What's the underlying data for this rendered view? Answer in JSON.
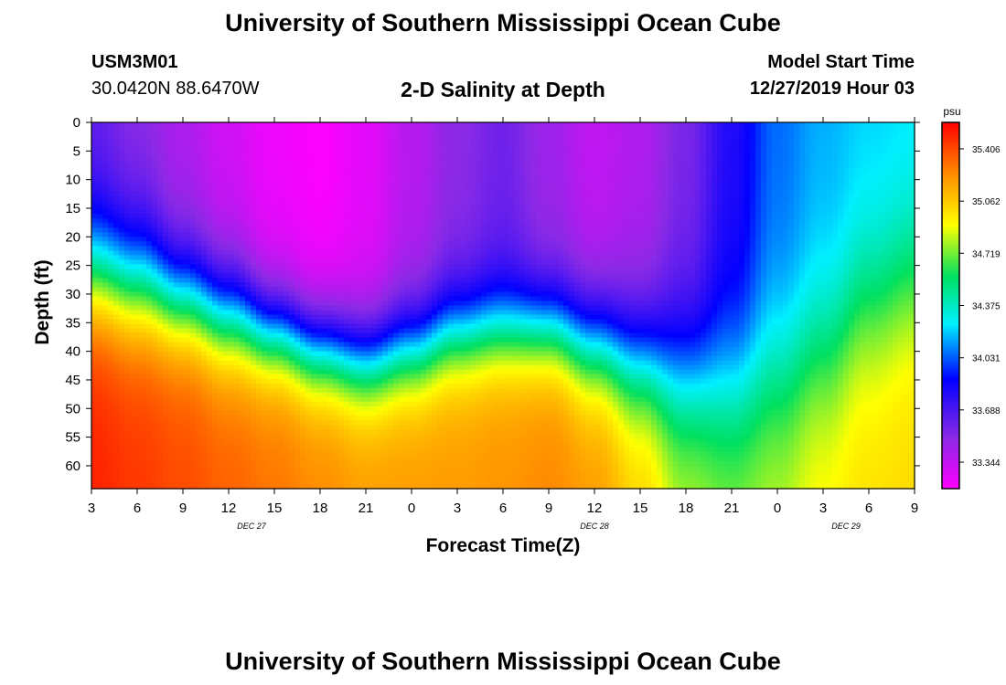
{
  "header": {
    "title": "University of Southern Mississippi Ocean Cube",
    "station_id": "USM3M01",
    "station_coords": "30.0420N 88.6470W",
    "plot_title": "2-D Salinity at Depth",
    "start_label": "Model Start Time",
    "start_value": "12/27/2019 Hour 03"
  },
  "footer": {
    "title": "University of Southern Mississippi Ocean Cube"
  },
  "chart_data": {
    "type": "heatmap",
    "title": "2-D Salinity at Depth",
    "xlabel": "Forecast Time(Z)",
    "ylabel": "Depth (ft)",
    "x_tick_labels": [
      "3",
      "6",
      "9",
      "12",
      "15",
      "18",
      "21",
      "0",
      "3",
      "6",
      "9",
      "12",
      "15",
      "18",
      "21",
      "0",
      "3",
      "6",
      "9"
    ],
    "x_tick_hours": [
      0,
      3,
      6,
      9,
      12,
      15,
      18,
      21,
      24,
      27,
      30,
      33,
      36,
      39,
      42,
      45,
      48,
      51,
      54
    ],
    "x_range_hours": [
      0,
      54
    ],
    "date_labels": [
      {
        "text": "DEC 27",
        "hour": 10.5
      },
      {
        "text": "DEC 28",
        "hour": 33
      },
      {
        "text": "DEC 29",
        "hour": 49.5
      }
    ],
    "y_ticks": [
      0,
      5,
      10,
      15,
      20,
      25,
      30,
      35,
      40,
      45,
      50,
      55,
      60
    ],
    "y_range": [
      0,
      64
    ],
    "colorbar": {
      "unit": "psu",
      "labels": [
        "35.406",
        "35.062",
        "34.719",
        "34.375",
        "34.031",
        "33.688",
        "33.344"
      ],
      "range": [
        33.17,
        35.58
      ]
    },
    "columns": [
      {
        "hour": 0,
        "halocline": 26,
        "surface": 33.6,
        "deep": 35.5,
        "width": 10
      },
      {
        "hour": 3,
        "halocline": 28,
        "surface": 33.5,
        "deep": 35.45,
        "width": 10
      },
      {
        "hour": 6,
        "halocline": 31,
        "surface": 33.4,
        "deep": 35.4,
        "width": 9
      },
      {
        "hour": 9,
        "halocline": 34,
        "surface": 33.3,
        "deep": 35.35,
        "width": 9
      },
      {
        "hour": 12,
        "halocline": 37,
        "surface": 33.22,
        "deep": 35.3,
        "width": 8
      },
      {
        "hour": 15,
        "halocline": 40,
        "surface": 33.18,
        "deep": 35.25,
        "width": 8
      },
      {
        "hour": 18,
        "halocline": 42,
        "surface": 33.25,
        "deep": 35.2,
        "width": 8
      },
      {
        "hour": 21,
        "halocline": 40,
        "surface": 33.38,
        "deep": 35.2,
        "width": 8
      },
      {
        "hour": 24,
        "halocline": 37,
        "surface": 33.5,
        "deep": 35.2,
        "width": 8
      },
      {
        "hour": 27,
        "halocline": 36,
        "surface": 33.58,
        "deep": 35.22,
        "width": 8
      },
      {
        "hour": 30,
        "halocline": 36,
        "surface": 33.45,
        "deep": 35.25,
        "width": 8
      },
      {
        "hour": 33,
        "halocline": 39,
        "surface": 33.35,
        "deep": 35.2,
        "width": 9
      },
      {
        "hour": 36,
        "halocline": 42,
        "surface": 33.4,
        "deep": 35.05,
        "width": 10
      },
      {
        "hour": 39,
        "halocline": 45,
        "surface": 33.55,
        "deep": 34.85,
        "width": 12
      },
      {
        "hour": 42,
        "halocline": 46,
        "surface": 33.8,
        "deep": 34.78,
        "width": 13
      },
      {
        "hour": 45,
        "halocline": 44,
        "surface": 34.05,
        "deep": 34.85,
        "width": 14
      },
      {
        "hour": 48,
        "halocline": 40,
        "surface": 34.15,
        "deep": 34.95,
        "width": 14
      },
      {
        "hour": 51,
        "halocline": 32,
        "surface": 34.2,
        "deep": 35.0,
        "width": 14
      },
      {
        "hour": 54,
        "halocline": 28,
        "surface": 34.22,
        "deep": 35.02,
        "width": 14
      }
    ]
  }
}
